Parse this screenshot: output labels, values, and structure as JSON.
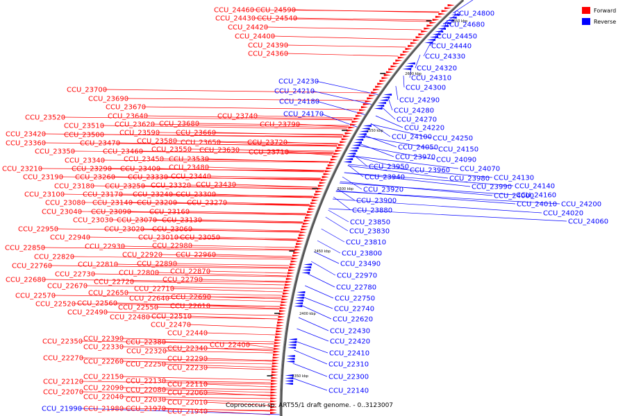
{
  "legend": {
    "items": [
      {
        "label": "Forward",
        "color": "#ff0000"
      },
      {
        "label": "Reverse",
        "color": "#0000ff"
      }
    ]
  },
  "footer": "Coprococcus sp. ART55/1 draft genome. - 0..3123007",
  "ticks": [
    "2650 kbp",
    "2600 kbp",
    "2550 kbp",
    "2500 kbp",
    "2450 kbp",
    "2400 kbp",
    "2350 kbp"
  ],
  "forward_genes": [
    "CCU_24460",
    "CCU_24590",
    "CCU_24430",
    "CCU_24540",
    "CCU_24420",
    "CCU_24400",
    "CCU_24390",
    "CCU_24360",
    "CCU_23700",
    "CCU_23690",
    "CCU_23670",
    "CCU_23640",
    "CCU_23740",
    "CCU_23520",
    "CCU_23620",
    "CCU_23680",
    "CCU_23790",
    "CCU_23510",
    "CCU_23590",
    "CCU_23660",
    "CCU_23420",
    "CCU_23500",
    "CCU_23580",
    "CCU_23650",
    "CCU_23720",
    "CCU_23360",
    "CCU_23470",
    "CCU_23550",
    "CCU_23630",
    "CCU_23710",
    "CCU_23350",
    "CCU_23460",
    "CCU_23530",
    "CCU_23340",
    "CCU_23450",
    "CCU_23480",
    "CCU_23210",
    "CCU_23290",
    "CCU_23400",
    "CCU_23190",
    "CCU_23260",
    "CCU_23330",
    "CCU_23440",
    "CCU_23180",
    "CCU_23250",
    "CCU_23320",
    "CCU_23430",
    "CCU_23100",
    "CCU_23170",
    "CCU_23240",
    "CCU_23300",
    "CCU_23080",
    "CCU_23140",
    "CCU_23200",
    "CCU_23270",
    "CCU_23040",
    "CCU_23090",
    "CCU_23160",
    "CCU_23030",
    "CCU_23070",
    "CCU_23130",
    "CCU_22950",
    "CCU_23020",
    "CCU_23060",
    "CCU_22940",
    "CCU_23010",
    "CCU_23050",
    "CCU_22850",
    "CCU_22930",
    "CCU_22980",
    "CCU_22820",
    "CCU_22920",
    "CCU_22960",
    "CCU_22760",
    "CCU_22810",
    "CCU_22890",
    "CCU_22730",
    "CCU_22800",
    "CCU_22870",
    "CCU_22680",
    "CCU_22720",
    "CCU_22790",
    "CCU_22670",
    "CCU_22710",
    "CCU_22570",
    "CCU_22650",
    "CCU_22640",
    "CCU_22690",
    "CCU_22520",
    "CCU_22560",
    "CCU_22550",
    "CCU_22610",
    "CCU_22490",
    "CCU_22480",
    "CCU_22510",
    "CCU_22470",
    "CCU_22440",
    "CCU_22350",
    "CCU_22390",
    "CCU_22380",
    "CCU_22330",
    "CCU_22400",
    "CCU_22320",
    "CCU_22340",
    "CCU_22270",
    "CCU_22290",
    "CCU_22260",
    "CCU_22250",
    "CCU_22230",
    "CCU_22120",
    "CCU_22150",
    "CCU_22130",
    "CCU_22110",
    "CCU_22070",
    "CCU_22090",
    "CCU_22080",
    "CCU_22060",
    "CCU_22040",
    "CCU_22030",
    "CCU_22010",
    "CCU_21980",
    "CCU_21970",
    "CCU_21940"
  ],
  "reverse_genes": [
    "CCU_24800",
    "CCU_24680",
    "CCU_24450",
    "CCU_24440",
    "CCU_24330",
    "CCU_24320",
    "CCU_24310",
    "CCU_24300",
    "CCU_24230",
    "CCU_24210",
    "CCU_24180",
    "CCU_24170",
    "CCU_24290",
    "CCU_24280",
    "CCU_24270",
    "CCU_24220",
    "CCU_24250",
    "CCU_24100",
    "CCU_24150",
    "CCU_24050",
    "CCU_24090",
    "CCU_23970",
    "CCU_24070",
    "CCU_23950",
    "CCU_23960",
    "CCU_24130",
    "CCU_23980",
    "CCU_23940",
    "CCU_23990",
    "CCU_24140",
    "CCU_23920",
    "CCU_24160",
    "CCU_24000",
    "CCU_24010",
    "CCU_24200",
    "CCU_23900",
    "CCU_24020",
    "CCU_23880",
    "CCU_24060",
    "CCU_23850",
    "CCU_23830",
    "CCU_23810",
    "CCU_23800",
    "CCU_23490",
    "CCU_22970",
    "CCU_22780",
    "CCU_22750",
    "CCU_22740",
    "CCU_22620",
    "CCU_22430",
    "CCU_22420",
    "CCU_22410",
    "CCU_22310",
    "CCU_22300",
    "CCU_22140",
    "CCU_21990"
  ]
}
